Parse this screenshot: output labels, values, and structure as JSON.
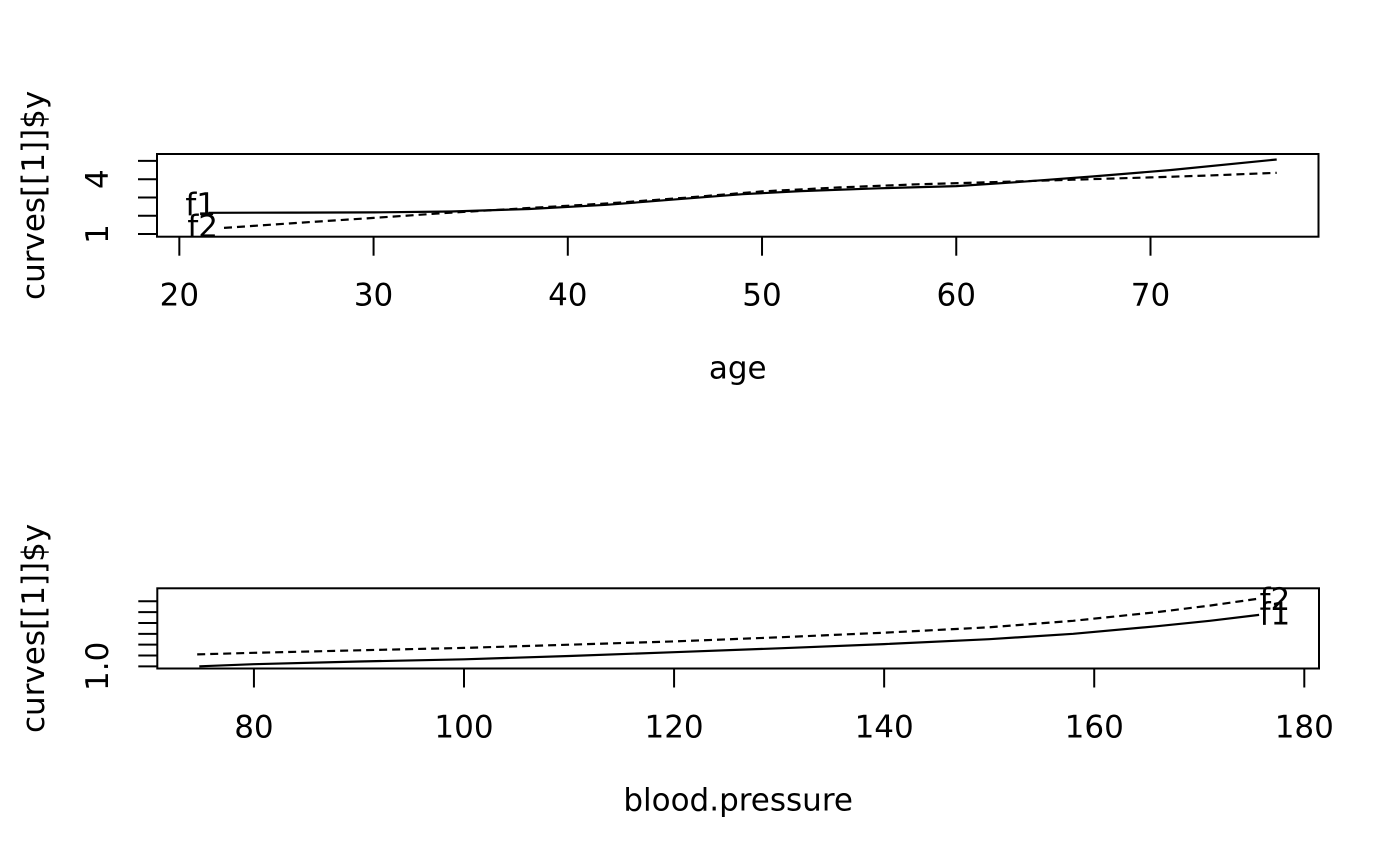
{
  "figure": {
    "background": "#ffffff",
    "foreground": "#000000",
    "description": "Two stacked R base-graphics line plots comparing fitted curves f1 (solid) and f2 (dashed)"
  },
  "chart_data": [
    {
      "type": "line",
      "title": "",
      "xlabel": "age",
      "ylabel": "curves[[1]]$y",
      "xlim": [
        18.85,
        78.65
      ],
      "ylim": [
        0.85,
        5.38
      ],
      "grid": false,
      "legend": "inline curve labels",
      "x_ticks": [
        {
          "value": 20,
          "label": "20"
        },
        {
          "value": 30,
          "label": "30"
        },
        {
          "value": 40,
          "label": "40"
        },
        {
          "value": 50,
          "label": "50"
        },
        {
          "value": 60,
          "label": "60"
        },
        {
          "value": 70,
          "label": "70"
        }
      ],
      "y_ticks": [
        {
          "value": 1,
          "label": "1"
        },
        {
          "value": 2,
          "label": ""
        },
        {
          "value": 3,
          "label": ""
        },
        {
          "value": 4,
          "label": "4"
        },
        {
          "value": 5,
          "label": ""
        }
      ],
      "series": [
        {
          "name": "f1",
          "line": "solid",
          "points": [
            [
              21.5,
              2.16
            ],
            [
              26,
              2.17
            ],
            [
              30,
              2.18
            ],
            [
              34,
              2.23
            ],
            [
              38,
              2.37
            ],
            [
              42,
              2.6
            ],
            [
              46,
              2.93
            ],
            [
              49,
              3.18
            ],
            [
              52,
              3.35
            ],
            [
              56,
              3.5
            ],
            [
              60,
              3.62
            ],
            [
              63,
              3.83
            ],
            [
              67,
              4.15
            ],
            [
              71,
              4.5
            ],
            [
              76.5,
              5.08
            ]
          ]
        },
        {
          "name": "f2",
          "line": "dashed",
          "points": [
            [
              22.3,
              1.33
            ],
            [
              26,
              1.6
            ],
            [
              30,
              1.88
            ],
            [
              34,
              2.17
            ],
            [
              38,
              2.42
            ],
            [
              42,
              2.67
            ],
            [
              46,
              2.98
            ],
            [
              50,
              3.33
            ],
            [
              54,
              3.55
            ],
            [
              58,
              3.72
            ],
            [
              62,
              3.84
            ],
            [
              66,
              3.97
            ],
            [
              70,
              4.1
            ],
            [
              73,
              4.2
            ],
            [
              76.5,
              4.35
            ]
          ]
        }
      ],
      "curve_labels": [
        {
          "text": "f1",
          "x": 21.1,
          "y": 2.64
        },
        {
          "text": "f2",
          "x": 21.2,
          "y": 1.44
        }
      ]
    },
    {
      "type": "line",
      "title": "",
      "xlabel": "blood.pressure",
      "ylabel": "curves[[1]]$y",
      "xlim": [
        70.8,
        181.4
      ],
      "ylim": [
        0.98,
        1.72
      ],
      "grid": false,
      "legend": "inline curve labels",
      "x_ticks": [
        {
          "value": 80,
          "label": "80"
        },
        {
          "value": 100,
          "label": "100"
        },
        {
          "value": 120,
          "label": "120"
        },
        {
          "value": 140,
          "label": "140"
        },
        {
          "value": 160,
          "label": "160"
        },
        {
          "value": 180,
          "label": "180"
        }
      ],
      "y_ticks": [
        {
          "value": 1.0,
          "label": "1.0"
        },
        {
          "value": 1.1,
          "label": ""
        },
        {
          "value": 1.2,
          "label": ""
        },
        {
          "value": 1.3,
          "label": ""
        },
        {
          "value": 1.4,
          "label": ""
        },
        {
          "value": 1.5,
          "label": ""
        },
        {
          "value": 1.6,
          "label": ""
        }
      ],
      "series": [
        {
          "name": "f1",
          "line": "solid",
          "points": [
            [
              74.8,
              1.0
            ],
            [
              80,
              1.02
            ],
            [
              90,
              1.045
            ],
            [
              100,
              1.065
            ],
            [
              110,
              1.095
            ],
            [
              120,
              1.13
            ],
            [
              130,
              1.166
            ],
            [
              140,
              1.205
            ],
            [
              150,
              1.25
            ],
            [
              158,
              1.3
            ],
            [
              166,
              1.37
            ],
            [
              171,
              1.42
            ],
            [
              175.7,
              1.475
            ]
          ]
        },
        {
          "name": "f2",
          "line": "dashed",
          "points": [
            [
              74.6,
              1.11
            ],
            [
              80,
              1.125
            ],
            [
              90,
              1.148
            ],
            [
              100,
              1.17
            ],
            [
              110,
              1.2
            ],
            [
              120,
              1.23
            ],
            [
              130,
              1.268
            ],
            [
              140,
              1.31
            ],
            [
              150,
              1.36
            ],
            [
              158,
              1.42
            ],
            [
              166,
              1.5
            ],
            [
              171,
              1.56
            ],
            [
              175.7,
              1.625
            ]
          ]
        }
      ],
      "curve_labels": [
        {
          "text": "f2",
          "x": 177.2,
          "y": 1.62
        },
        {
          "text": "f1",
          "x": 177.2,
          "y": 1.487
        }
      ]
    }
  ]
}
